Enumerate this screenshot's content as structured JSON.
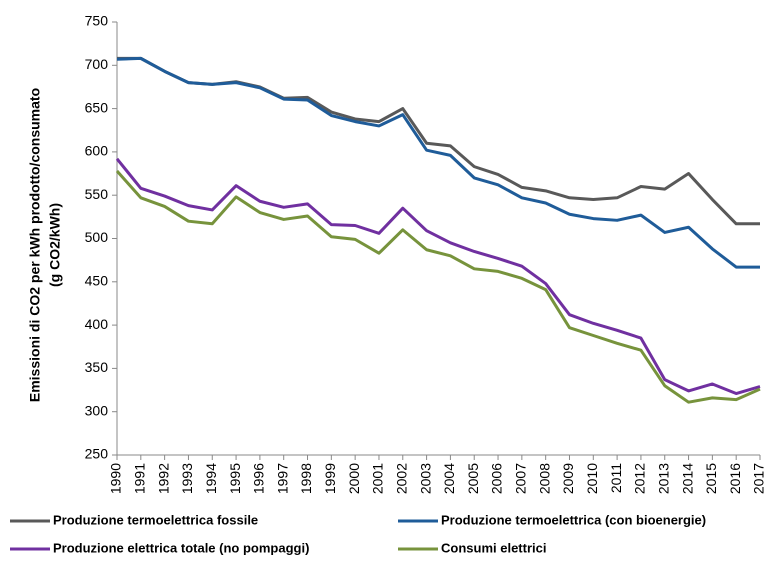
{
  "chart_data": {
    "type": "line",
    "ylabel": [
      "Emissioni di CO2 per kWh prodotto/consumato",
      "(g CO2/kWh)"
    ],
    "categories": [
      "1990",
      "1991",
      "1992",
      "1993",
      "1994",
      "1995",
      "1996",
      "1997",
      "1998",
      "1999",
      "2000",
      "2001",
      "2002",
      "2003",
      "2004",
      "2005",
      "2006",
      "2007",
      "2008",
      "2009",
      "2010",
      "2011",
      "2012",
      "2013",
      "2014",
      "2015",
      "2016",
      "2017"
    ],
    "series": [
      {
        "name": "Produzione termoelettrica fossile",
        "color": "#595959",
        "values": [
          708,
          708,
          693,
          680,
          678,
          681,
          675,
          662,
          663,
          646,
          638,
          635,
          650,
          610,
          607,
          583,
          574,
          559,
          555,
          547,
          545,
          547,
          560,
          557,
          575,
          545,
          517,
          517
        ]
      },
      {
        "name": "Produzione termoelettrica (con bioenergie)",
        "color": "#1f5c99",
        "values": [
          707,
          708,
          693,
          680,
          678,
          680,
          674,
          661,
          660,
          642,
          635,
          630,
          643,
          602,
          596,
          570,
          562,
          547,
          541,
          528,
          523,
          521,
          527,
          507,
          513,
          488,
          467,
          467
        ]
      },
      {
        "name": "Produzione elettrica totale (no pompaggi)",
        "color": "#7030a0",
        "values": [
          592,
          558,
          549,
          538,
          533,
          561,
          543,
          536,
          540,
          516,
          515,
          506,
          535,
          509,
          495,
          485,
          477,
          468,
          448,
          412,
          402,
          394,
          385,
          337,
          324,
          332,
          321,
          329
        ]
      },
      {
        "name": "Consumi elettrici",
        "color": "#77933c",
        "values": [
          578,
          547,
          537,
          520,
          517,
          548,
          530,
          522,
          526,
          502,
          499,
          483,
          510,
          487,
          480,
          465,
          462,
          454,
          441,
          397,
          388,
          379,
          371,
          330,
          311,
          316,
          314,
          326
        ]
      }
    ],
    "ylim": [
      250,
      750
    ],
    "yticks": [
      250,
      300,
      350,
      400,
      450,
      500,
      550,
      600,
      650,
      700,
      750
    ],
    "grid": false
  }
}
